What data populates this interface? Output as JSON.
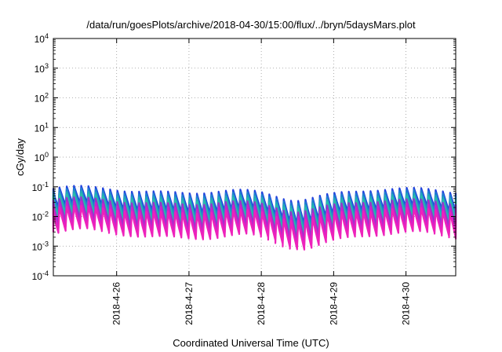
{
  "chart_data": {
    "type": "line",
    "title": "/data/run/goesPlots/archive/2018-04-30/15:00/flux/../bryn/5daysMars.plot",
    "xlabel": "Coordinated Universal Time (UTC)",
    "ylabel": "cGy/day",
    "yscale": "log",
    "ylim": [
      0.0001,
      10000
    ],
    "y_ticks": [
      {
        "base": "10",
        "exp": "-4",
        "value": 0.0001
      },
      {
        "base": "10",
        "exp": "-3",
        "value": 0.001
      },
      {
        "base": "10",
        "exp": "-2",
        "value": 0.01
      },
      {
        "base": "10",
        "exp": "-1",
        "value": 0.1
      },
      {
        "base": "10",
        "exp": "0",
        "value": 1
      },
      {
        "base": "10",
        "exp": "1",
        "value": 10
      },
      {
        "base": "10",
        "exp": "2",
        "value": 100
      },
      {
        "base": "10",
        "exp": "3",
        "value": 1000
      },
      {
        "base": "10",
        "exp": "4",
        "value": 10000
      }
    ],
    "xlim": [
      "2018-04-25 03:00",
      "2018-04-30 16:30"
    ],
    "x_ticks": [
      {
        "label": "2018-4-26",
        "date": "2018-04-26 00:00"
      },
      {
        "label": "2018-4-27",
        "date": "2018-04-27 00:00"
      },
      {
        "label": "2018-4-28",
        "date": "2018-04-28 00:00"
      },
      {
        "label": "2018-4-29",
        "date": "2018-04-29 00:00"
      },
      {
        "label": "2018-4-30",
        "date": "2018-04-30 00:00"
      }
    ],
    "grid": true,
    "legend": "none",
    "period_hours": 2.4,
    "series": [
      {
        "color": "#2244dd",
        "peak": 0.085,
        "trough": 0.02
      },
      {
        "color": "#1f7fd0",
        "peak": 0.07,
        "trough": 0.015
      },
      {
        "color": "#22a8b8",
        "peak": 0.055,
        "trough": 0.011
      },
      {
        "color": "#28c0a8",
        "peak": 0.045,
        "trough": 0.008
      },
      {
        "color": "#9a33cc",
        "peak": 0.035,
        "trough": 0.006
      },
      {
        "color": "#cc22cc",
        "peak": 0.025,
        "trough": 0.004
      },
      {
        "color": "#ee22bb",
        "peak": 0.018,
        "trough": 0.0028
      }
    ]
  }
}
